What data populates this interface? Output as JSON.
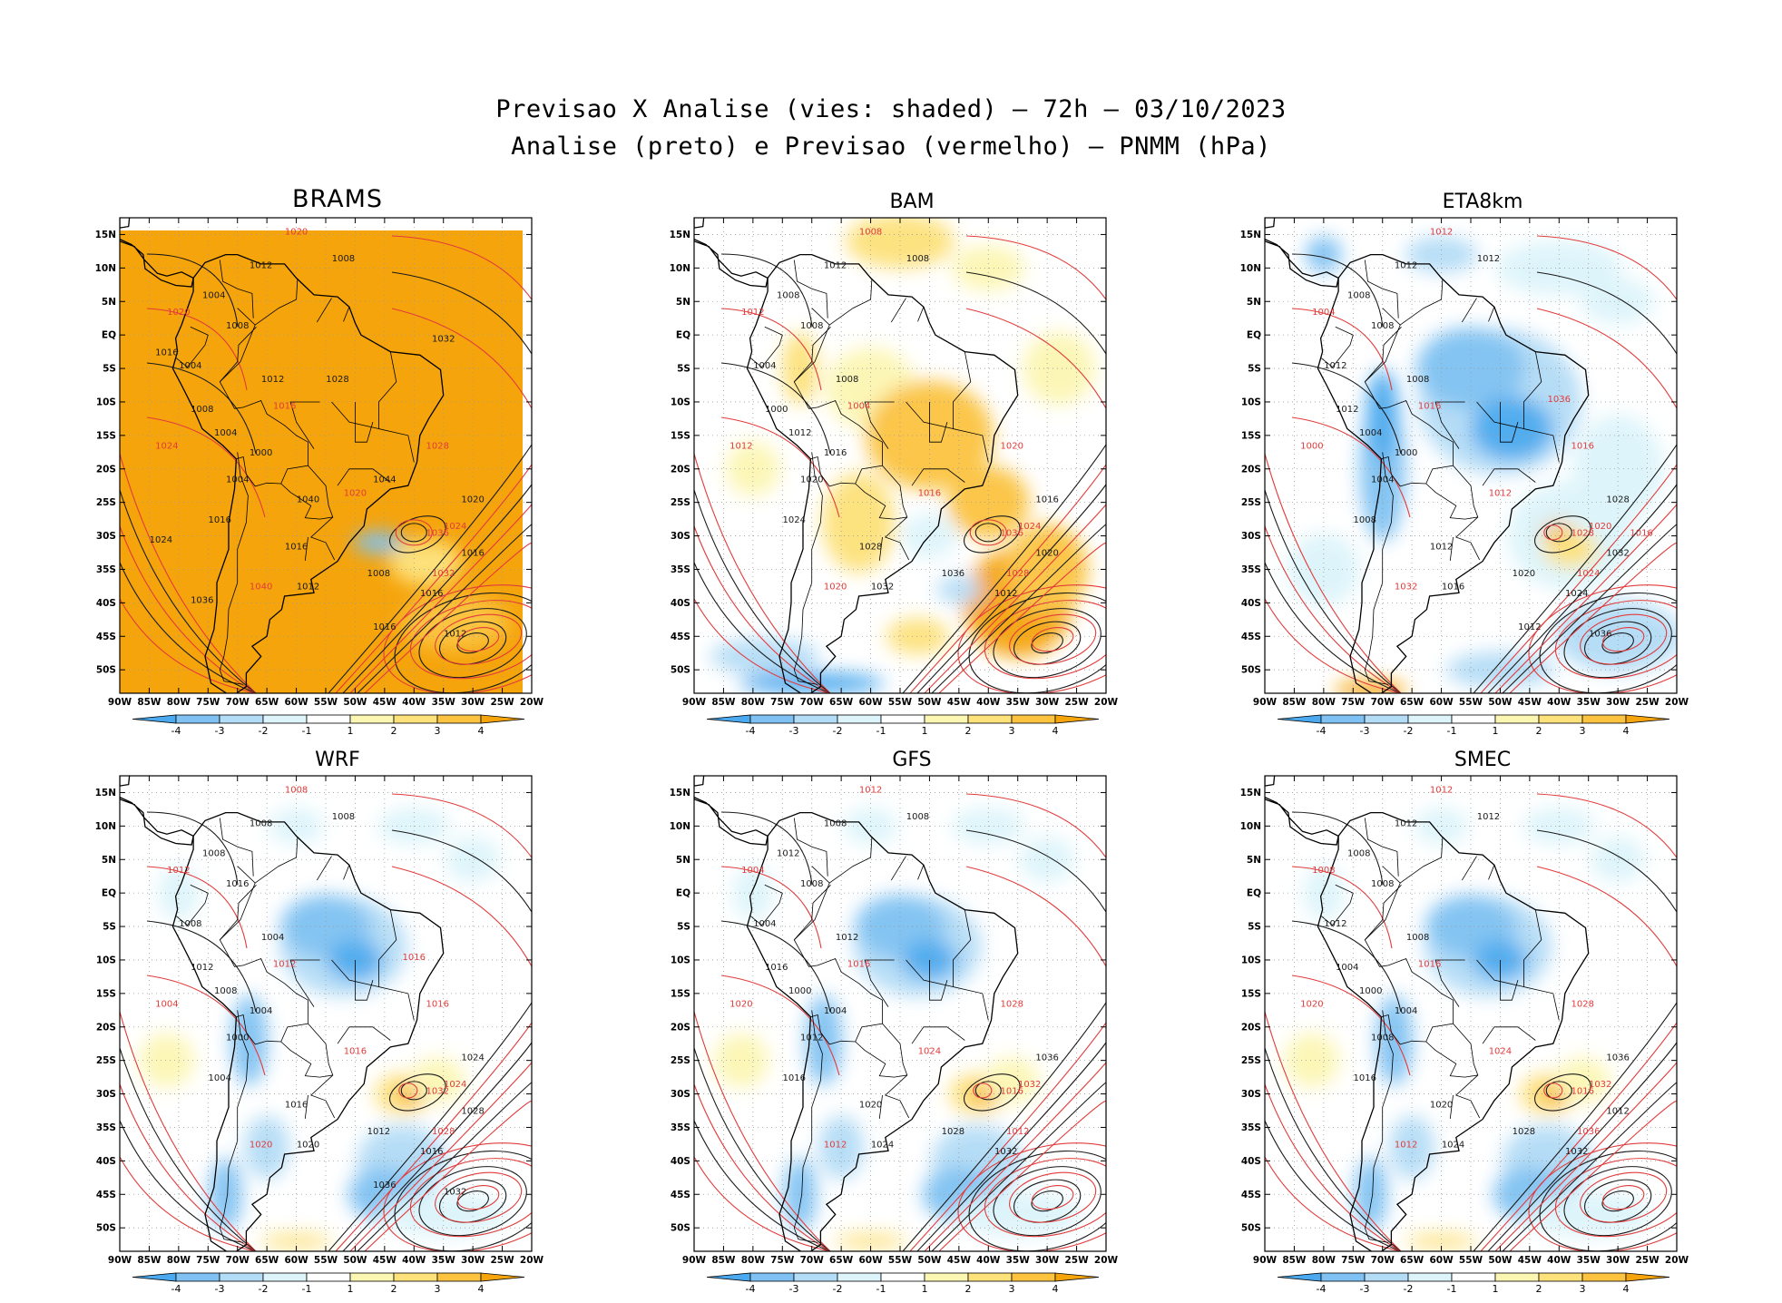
{
  "figure": {
    "title_line1": "Previsao X Analise (vies: shaded) – 72h – 03/10/2023",
    "title_line2": "Analise (preto) e Previsao (vermelho) – PNMM (hPa)"
  },
  "axes": {
    "lat_labels": [
      "15N",
      "10N",
      "5N",
      "EQ",
      "5S",
      "10S",
      "15S",
      "20S",
      "25S",
      "30S",
      "35S",
      "40S",
      "45S",
      "50S"
    ],
    "lon_labels": [
      "90W",
      "85W",
      "80W",
      "75W",
      "70W",
      "65W",
      "60W",
      "55W",
      "50W",
      "45W",
      "40W",
      "35W",
      "30W",
      "25W",
      "20W"
    ]
  },
  "colorbar": {
    "labels": [
      "-4",
      "-3",
      "-2",
      "-1",
      "1",
      "2",
      "3",
      "4"
    ],
    "colors": [
      "#4aa9ef",
      "#7ec1f2",
      "#b3dcf6",
      "#dcf4fa",
      "#ffffff",
      "#fcf6b3",
      "#fde17a",
      "#fbc33f",
      "#f5a40c"
    ]
  },
  "contour_colors": {
    "analysis": "#1a1a1a",
    "forecast": "#e23b3b"
  },
  "panels": [
    {
      "name": "BRAMS",
      "fill": "orange",
      "black_labels": [
        "1012",
        "1008",
        "1004",
        "1008",
        "1004",
        "1012",
        "1008",
        "1004",
        "1000",
        "1004",
        "1016",
        "1016",
        "1012",
        "1008",
        "1016",
        "1020",
        "1016",
        "1012",
        "1016",
        "1024",
        "1036",
        "1040",
        "1044",
        "1028",
        "1032",
        "1016"
      ],
      "red_labels": [
        "1020",
        "1020",
        "1016",
        "1024",
        "1020",
        "1028",
        "1024",
        "1032",
        "1036",
        "1040"
      ]
    },
    {
      "name": "BAM",
      "fill": "mixed",
      "black_labels": [
        "1012",
        "1008",
        "1008",
        "1008",
        "1004",
        "1008",
        "1000",
        "1012",
        "1016",
        "1020",
        "1024",
        "1028",
        "1032",
        "1036",
        "1012",
        "1016",
        "1020"
      ],
      "red_labels": [
        "1008",
        "1012",
        "1004",
        "1012",
        "1016",
        "1020",
        "1024",
        "1028",
        "1036",
        "1020"
      ]
    },
    {
      "name": "ETA8km",
      "fill": "blue",
      "black_labels": [
        "1012",
        "1012",
        "1008",
        "1008",
        "1012",
        "1008",
        "1012",
        "1004",
        "1000",
        "1004",
        "1008",
        "1012",
        "1016",
        "1020",
        "1024",
        "1028",
        "1032",
        "1036",
        "1012"
      ],
      "red_labels": [
        "1012",
        "1004",
        "1016",
        "1000",
        "1012",
        "1016",
        "1020",
        "1024",
        "1028",
        "1032",
        "1036",
        "1016"
      ]
    },
    {
      "name": "WRF",
      "fill": "mixed-blue",
      "black_labels": [
        "1008",
        "1008",
        "1008",
        "1016",
        "1008",
        "1004",
        "1012",
        "1008",
        "1004",
        "1000",
        "1004",
        "1016",
        "1020",
        "1012",
        "1016",
        "1024",
        "1028",
        "1032",
        "1036"
      ],
      "red_labels": [
        "1008",
        "1012",
        "1012",
        "1004",
        "1016",
        "1016",
        "1024",
        "1028",
        "1032",
        "1020",
        "1016"
      ]
    },
    {
      "name": "GFS",
      "fill": "mixed-blue",
      "black_labels": [
        "1008",
        "1008",
        "1012",
        "1008",
        "1004",
        "1012",
        "1016",
        "1000",
        "1004",
        "1012",
        "1016",
        "1020",
        "1024",
        "1028",
        "1032",
        "1036"
      ],
      "red_labels": [
        "1012",
        "1004",
        "1016",
        "1020",
        "1024",
        "1028",
        "1032",
        "1012",
        "1016",
        "1012"
      ]
    },
    {
      "name": "SMEC",
      "fill": "mixed-blue",
      "black_labels": [
        "1012",
        "1012",
        "1008",
        "1008",
        "1012",
        "1008",
        "1004",
        "1000",
        "1004",
        "1008",
        "1016",
        "1020",
        "1024",
        "1028",
        "1032",
        "1036",
        "1012"
      ],
      "red_labels": [
        "1012",
        "1008",
        "1016",
        "1020",
        "1024",
        "1028",
        "1032",
        "1036",
        "1016",
        "1012"
      ]
    }
  ]
}
